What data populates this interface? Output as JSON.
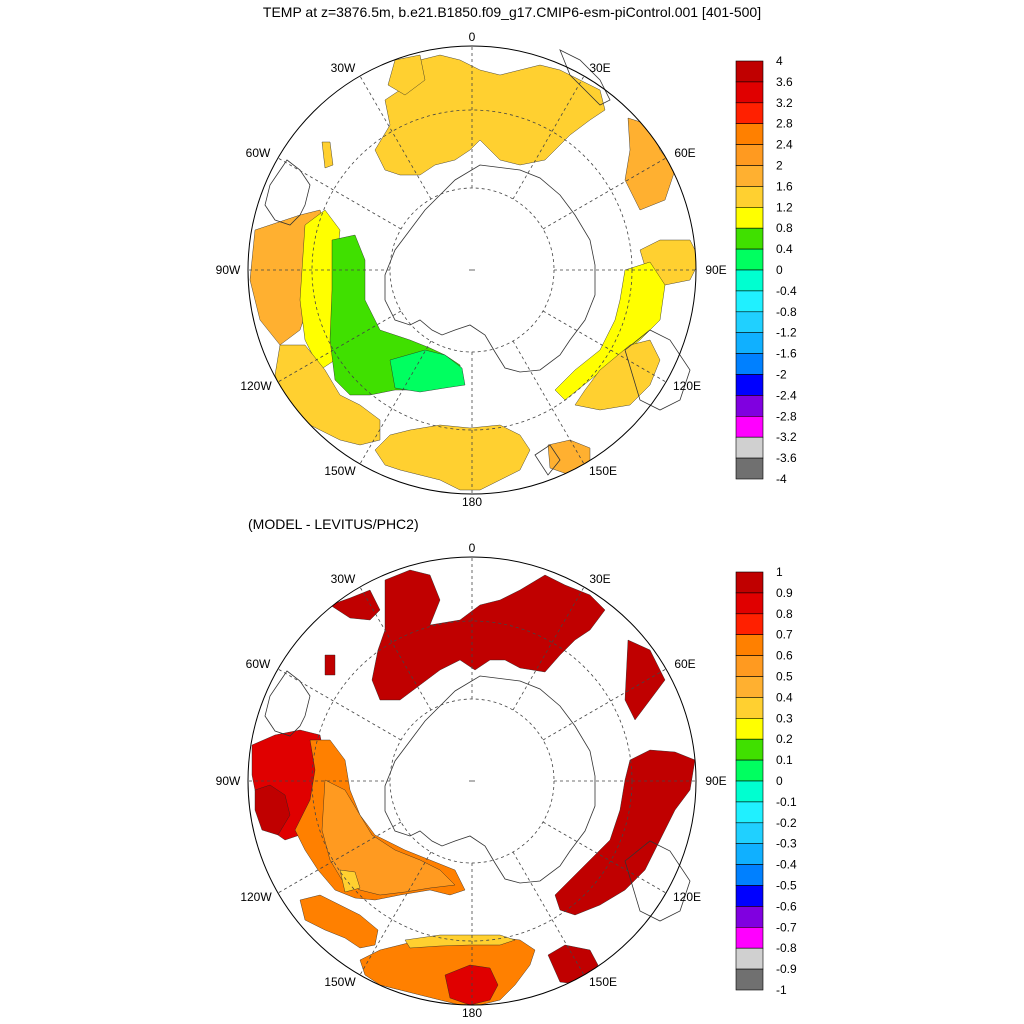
{
  "title": "TEMP at z=3876.5m, b.e21.B1850.f09_g17.CMIP6-esm-piControl.001 [401-500]",
  "panel2_title": "(MODEL - LEVITUS/PHC2)",
  "longitude_labels": {
    "lon_0": "0",
    "lon_30e": "30E",
    "lon_60e": "60E",
    "lon_90e": "90E",
    "lon_120e": "120E",
    "lon_150e": "150E",
    "lon_180": "180",
    "lon_150w": "150W",
    "lon_120w": "120W",
    "lon_90w": "90W",
    "lon_60w": "60W",
    "lon_30w": "30W"
  },
  "panel1_colorbar": {
    "labels": [
      "4",
      "3.6",
      "3.2",
      "2.8",
      "2.4",
      "2",
      "1.6",
      "1.2",
      "0.8",
      "0.4",
      "0",
      "-0.4",
      "-0.8",
      "-1.2",
      "-1.6",
      "-2",
      "-2.4",
      "-2.8",
      "-3.2",
      "-3.6",
      "-4"
    ],
    "colors": [
      "#c00000",
      "#e00000",
      "#ff2000",
      "#ff8000",
      "#ff9a20",
      "#ffb030",
      "#ffd030",
      "#ffff00",
      "#40e000",
      "#00ff60",
      "#00ffd0",
      "#20f0ff",
      "#20d0ff",
      "#10b0ff",
      "#0080ff",
      "#0000ff",
      "#8000e0",
      "#ff00ff",
      "#d0d0d0",
      "#707070"
    ]
  },
  "panel2_colorbar": {
    "labels": [
      "1",
      "0.9",
      "0.8",
      "0.7",
      "0.6",
      "0.5",
      "0.4",
      "0.3",
      "0.2",
      "0.1",
      "0",
      "-0.1",
      "-0.2",
      "-0.3",
      "-0.4",
      "-0.5",
      "-0.6",
      "-0.7",
      "-0.8",
      "-0.9",
      "-1"
    ],
    "colors": [
      "#c00000",
      "#e00000",
      "#ff2000",
      "#ff8000",
      "#ff9a20",
      "#ffb030",
      "#ffd030",
      "#ffff00",
      "#40e000",
      "#00ff60",
      "#00ffd0",
      "#20f0ff",
      "#20d0ff",
      "#10b0ff",
      "#0080ff",
      "#0000ff",
      "#8000e0",
      "#ff00ff",
      "#d0d0d0",
      "#707070"
    ]
  },
  "field_colors": {
    "panel1_main": "#ffd030",
    "panel1_warm": "#ffb030",
    "panel1_yellow": "#ffff00",
    "panel1_green": "#40e000",
    "panel1_lightgreen": "#00ff60",
    "panel2_dark_red": "#c00000",
    "panel2_red": "#e00000",
    "panel2_orange": "#ff8000",
    "panel2_light_orange": "#ff9a20",
    "panel2_yellow": "#ffd030"
  }
}
